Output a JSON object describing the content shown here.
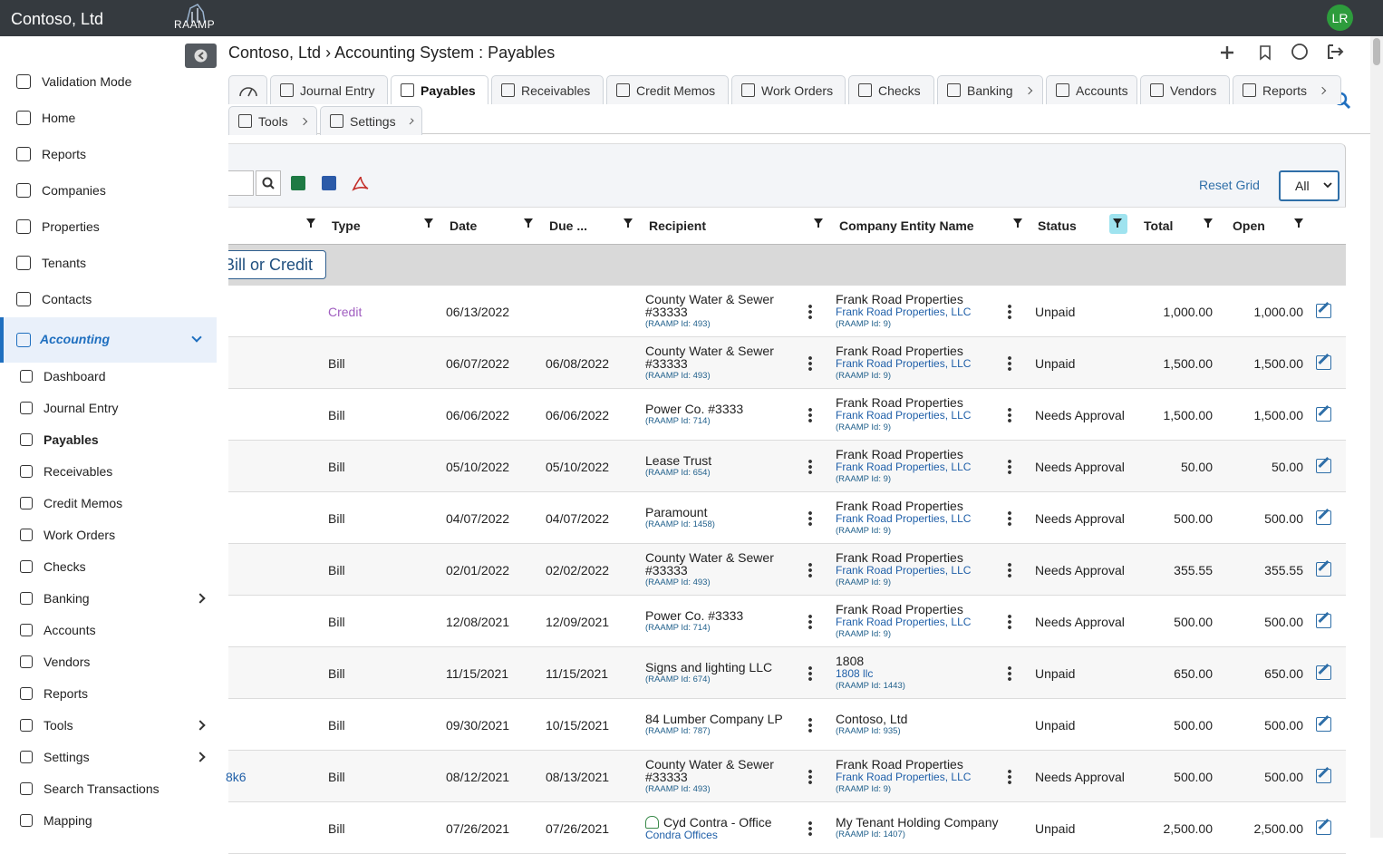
{
  "header": {
    "company": "Contoso, Ltd",
    "logo": "RAAMP",
    "avatar": "LR"
  },
  "sidebar": {
    "items": [
      {
        "label": "Validation Mode"
      },
      {
        "label": "Home"
      },
      {
        "label": "Reports"
      },
      {
        "label": "Companies"
      },
      {
        "label": "Properties"
      },
      {
        "label": "Tenants"
      },
      {
        "label": "Contacts"
      }
    ],
    "section": {
      "label": "Accounting",
      "items": [
        {
          "label": "Dashboard"
        },
        {
          "label": "Journal Entry"
        },
        {
          "label": "Payables",
          "active": true
        },
        {
          "label": "Receivables"
        },
        {
          "label": "Credit Memos"
        },
        {
          "label": "Work Orders"
        },
        {
          "label": "Checks"
        },
        {
          "label": "Banking",
          "submenu": true
        },
        {
          "label": "Accounts"
        },
        {
          "label": "Vendors"
        },
        {
          "label": "Reports"
        },
        {
          "label": "Tools",
          "submenu": true
        },
        {
          "label": "Settings",
          "submenu": true
        },
        {
          "label": "Search Transactions"
        },
        {
          "label": "Mapping"
        }
      ]
    }
  },
  "breadcrumb": "Contoso, Ltd › Accounting System : Payables",
  "tabs": [
    [
      {
        "label": "Journal Entry"
      },
      {
        "label": "Payables",
        "active": true
      },
      {
        "label": "Receivables"
      },
      {
        "label": "Credit Memos"
      },
      {
        "label": "Work Orders"
      },
      {
        "label": "Checks"
      },
      {
        "label": "Banking",
        "submenu": true
      },
      {
        "label": "Accounts"
      },
      {
        "label": "Vendors"
      },
      {
        "label": "Reports",
        "submenu": true
      }
    ],
    [
      {
        "label": "Tools",
        "submenu": true
      },
      {
        "label": "Settings",
        "submenu": true
      }
    ]
  ],
  "toolbar": {
    "reset": "Reset Grid",
    "filter": "All"
  },
  "columns": [
    "Type",
    "Date",
    "Due ...",
    "Recipient",
    "Company Entity Name",
    "Status",
    "Total",
    "Open"
  ],
  "group_button": "Bill or Credit",
  "rows": [
    {
      "type": "Credit",
      "type_color": "#a05ec0",
      "date": "06/13/2022",
      "recipient": {
        "name": "County Water & Sewer #33333",
        "id": "(RAAMP Id: 493)"
      },
      "company": {
        "name": "Frank Road Properties",
        "sub": "Frank Road Properties, LLC",
        "id": "(RAAMP Id: 9)"
      },
      "status": "Unpaid",
      "total": "1,000.00",
      "open": "1,000.00"
    },
    {
      "type": "Bill",
      "date": "06/07/2022",
      "due": "06/08/2022",
      "recipient": {
        "name": "County Water & Sewer #33333",
        "id": "(RAAMP Id: 493)"
      },
      "company": {
        "name": "Frank Road Properties",
        "sub": "Frank Road Properties, LLC",
        "id": "(RAAMP Id: 9)"
      },
      "status": "Unpaid",
      "total": "1,500.00",
      "open": "1,500.00"
    },
    {
      "type": "Bill",
      "date": "06/06/2022",
      "due": "06/06/2022",
      "recipient": {
        "name": "Power Co. #3333",
        "id": "(RAAMP Id: 714)"
      },
      "company": {
        "name": "Frank Road Properties",
        "sub": "Frank Road Properties, LLC",
        "id": "(RAAMP Id: 9)"
      },
      "status": "Needs Approval",
      "total": "1,500.00",
      "open": "1,500.00"
    },
    {
      "type": "Bill",
      "date": "05/10/2022",
      "due": "05/10/2022",
      "recipient": {
        "name": "Lease Trust",
        "id": "(RAAMP Id: 654)"
      },
      "company": {
        "name": "Frank Road Properties",
        "sub": "Frank Road Properties, LLC",
        "id": "(RAAMP Id: 9)"
      },
      "status": "Needs Approval",
      "total": "50.00",
      "open": "50.00"
    },
    {
      "type": "Bill",
      "date": "04/07/2022",
      "due": "04/07/2022",
      "recipient": {
        "name": "Paramount",
        "id": "(RAAMP Id: 1458)"
      },
      "company": {
        "name": "Frank Road Properties",
        "sub": "Frank Road Properties, LLC",
        "id": "(RAAMP Id: 9)"
      },
      "status": "Needs Approval",
      "total": "500.00",
      "open": "500.00"
    },
    {
      "type": "Bill",
      "date": "02/01/2022",
      "due": "02/02/2022",
      "recipient": {
        "name": "County Water & Sewer #33333",
        "id": "(RAAMP Id: 493)"
      },
      "company": {
        "name": "Frank Road Properties",
        "sub": "Frank Road Properties, LLC",
        "id": "(RAAMP Id: 9)"
      },
      "status": "Needs Approval",
      "total": "355.55",
      "open": "355.55"
    },
    {
      "type": "Bill",
      "date": "12/08/2021",
      "due": "12/09/2021",
      "recipient": {
        "name": "Power Co. #3333",
        "id": "(RAAMP Id: 714)"
      },
      "company": {
        "name": "Frank Road Properties",
        "sub": "Frank Road Properties, LLC",
        "id": "(RAAMP Id: 9)"
      },
      "status": "Needs Approval",
      "total": "500.00",
      "open": "500.00"
    },
    {
      "type": "Bill",
      "date": "11/15/2021",
      "due": "11/15/2021",
      "recipient": {
        "name": "Signs and lighting LLC",
        "id": "(RAAMP Id: 674)"
      },
      "company": {
        "name": "1808",
        "sub": "1808 llc",
        "id": "(RAAMP Id: 1443)"
      },
      "status": "Unpaid",
      "total": "650.00",
      "open": "650.00"
    },
    {
      "type": "Bill",
      "date": "09/30/2021",
      "due": "10/15/2021",
      "recipient": {
        "name": "84 Lumber Company LP",
        "id": "(RAAMP Id: 787)"
      },
      "company": {
        "name": "Contoso, Ltd",
        "id": "(RAAMP Id: 935)"
      },
      "status": "Unpaid",
      "total": "500.00",
      "open": "500.00"
    },
    {
      "reference": "8k6",
      "type": "Bill",
      "date": "08/12/2021",
      "due": "08/13/2021",
      "recipient": {
        "name": "County Water & Sewer #33333",
        "id": "(RAAMP Id: 493)"
      },
      "company": {
        "name": "Frank Road Properties",
        "sub": "Frank Road Properties, LLC",
        "id": "(RAAMP Id: 9)"
      },
      "status": "Needs Approval",
      "total": "500.00",
      "open": "500.00"
    },
    {
      "type": "Bill",
      "date": "07/26/2021",
      "due": "07/26/2021",
      "recipient": {
        "name": "Cyd Contra - Office",
        "sub": "Condra Offices"
      },
      "company": {
        "name": "My Tenant Holding Company",
        "id": "(RAAMP Id: 1407)"
      },
      "status": "Unpaid",
      "total": "2,500.00",
      "open": "2,500.00"
    }
  ]
}
